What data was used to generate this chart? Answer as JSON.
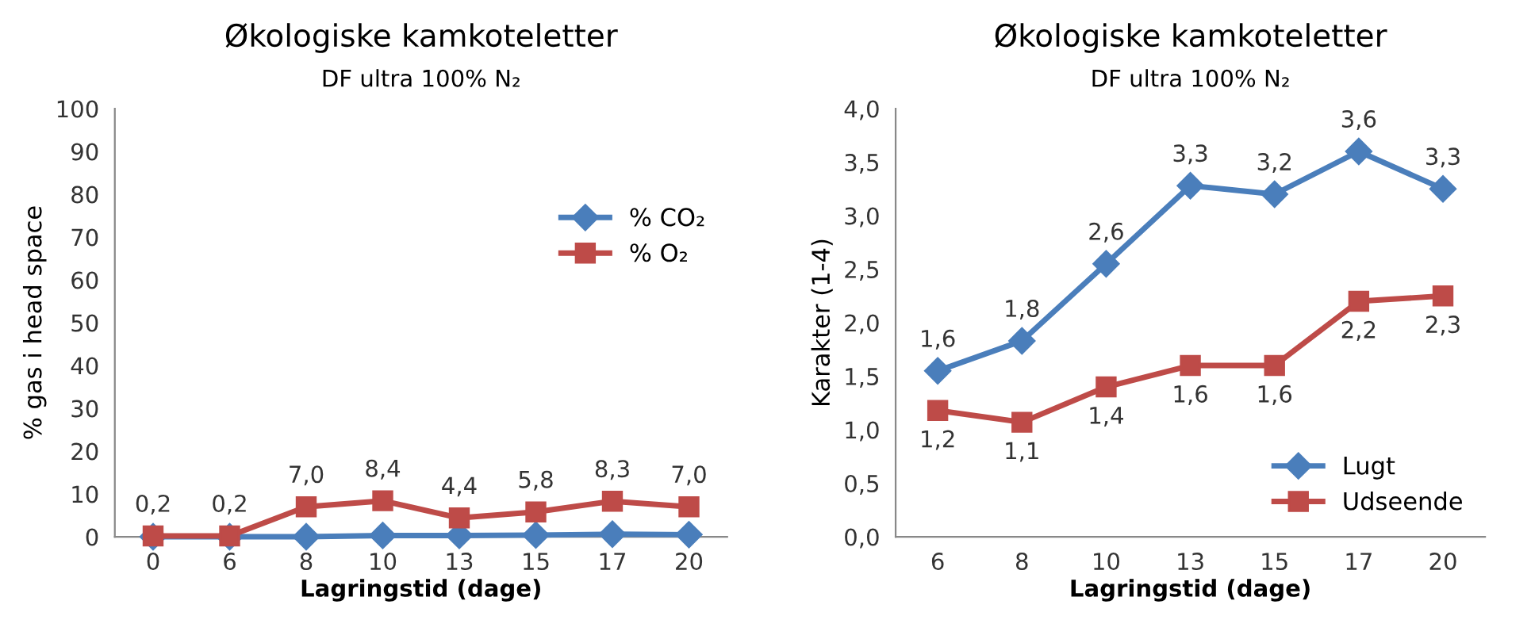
{
  "chart_data": [
    {
      "type": "line",
      "title": "Økologiske kamkoteletter",
      "subtitle": "DF ultra 100% N₂",
      "xlabel": "Lagringstid (dage)",
      "ylabel": "% gas i head space",
      "categories": [
        "0",
        "6",
        "8",
        "10",
        "13",
        "15",
        "17",
        "20"
      ],
      "ylim": [
        0,
        100
      ],
      "yticks": [
        0,
        10,
        20,
        30,
        40,
        50,
        60,
        70,
        80,
        90,
        100
      ],
      "legend": "right",
      "grid": false,
      "line_style": "solid",
      "series": [
        {
          "name": "% CO₂",
          "color": "#4a7ebb",
          "marker": "diamond",
          "values": [
            0,
            0,
            0,
            0.3,
            0.3,
            0.4,
            0.6,
            0.5
          ]
        },
        {
          "name": "% O₂",
          "color": "#be4b48",
          "marker": "square",
          "values": [
            0.2,
            0.2,
            7.0,
            8.4,
            4.4,
            5.8,
            8.3,
            7.0
          ],
          "value_labels": [
            "0,2",
            "0,2",
            "7,0",
            "8,4",
            "4,4",
            "5,8",
            "8,3",
            "7,0"
          ]
        }
      ]
    },
    {
      "type": "line",
      "title": "Økologiske kamkoteletter",
      "subtitle": "DF ultra 100% N₂",
      "xlabel": "Lagringstid (dage)",
      "ylabel": "Karakter (1-4)",
      "categories": [
        "6",
        "8",
        "10",
        "13",
        "15",
        "17",
        "20"
      ],
      "ylim": [
        0,
        4
      ],
      "yticks": [
        {
          "value": 0,
          "label": "0,0"
        },
        {
          "value": 0.5,
          "label": "0,5"
        },
        {
          "value": 1,
          "label": "1,0"
        },
        {
          "value": 1.5,
          "label": "1,5"
        },
        {
          "value": 2,
          "label": "2,0"
        },
        {
          "value": 2.5,
          "label": "2,5"
        },
        {
          "value": 3,
          "label": "3,0"
        },
        {
          "value": 3.5,
          "label": "3,5"
        },
        {
          "value": 4,
          "label": "4,0"
        }
      ],
      "legend": "bottom right",
      "grid": false,
      "line_style": "solid",
      "series": [
        {
          "name": "Lugt",
          "color": "#4a7ebb",
          "marker": "diamond",
          "values": [
            1.55,
            1.83,
            2.55,
            3.28,
            3.2,
            3.6,
            3.25
          ],
          "value_labels": [
            "1,6",
            "1,8",
            "2,6",
            "3,3",
            "3,2",
            "3,6",
            "3,3"
          ]
        },
        {
          "name": "Udseende",
          "color": "#be4b48",
          "marker": "square",
          "values": [
            1.18,
            1.07,
            1.4,
            1.6,
            1.6,
            2.2,
            2.25
          ],
          "value_labels": [
            "1,2",
            "1,1",
            "1,4",
            "1,6",
            "1,6",
            "2,2",
            "2,3"
          ]
        }
      ]
    }
  ]
}
